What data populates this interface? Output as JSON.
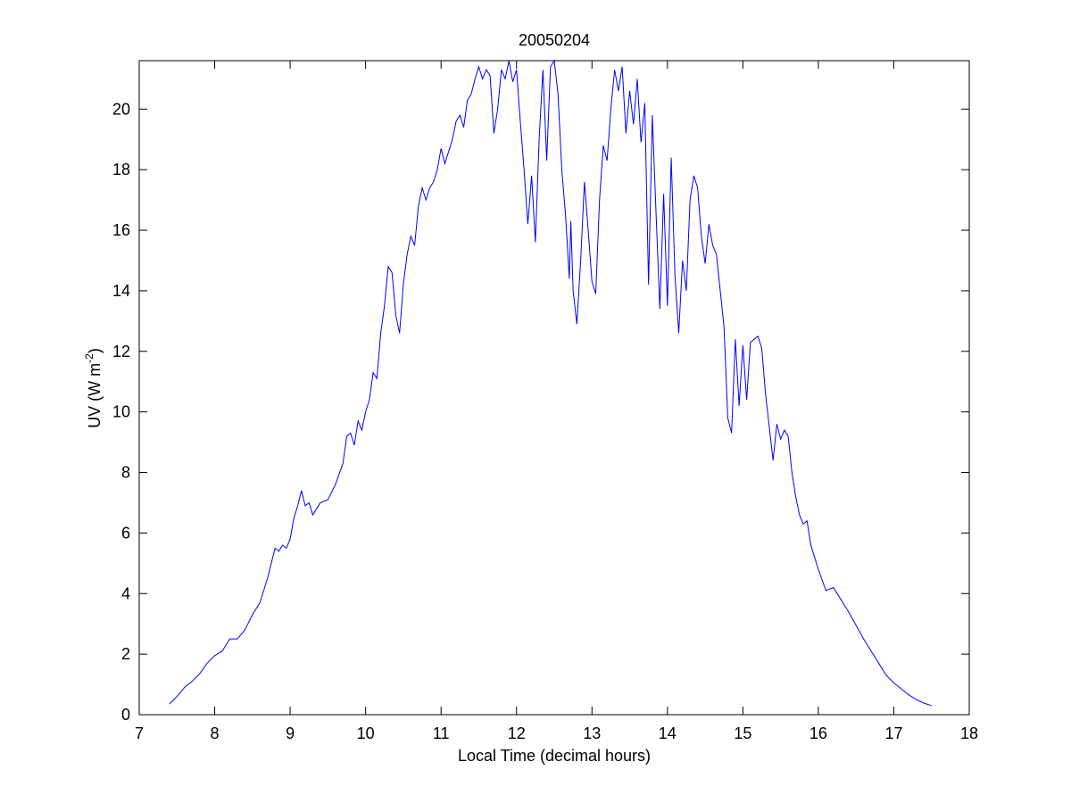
{
  "chart_data": {
    "type": "line",
    "title": "20050204",
    "xlabel": "Local Time (decimal hours)",
    "ylabel": [
      "UV (W m",
      "-2",
      ")"
    ],
    "xlim": [
      7,
      18
    ],
    "xticks": [
      7,
      8,
      9,
      10,
      11,
      12,
      13,
      14,
      15,
      16,
      17,
      18
    ],
    "ylim": [
      0,
      21.6
    ],
    "yticks": [
      0,
      2,
      4,
      6,
      8,
      10,
      12,
      14,
      16,
      18,
      20
    ],
    "grid": false,
    "box": true,
    "series": [
      {
        "color": "#0000ff",
        "x": [
          7.4,
          7.5,
          7.6,
          7.7,
          7.8,
          7.9,
          8.0,
          8.1,
          8.2,
          8.3,
          8.4,
          8.5,
          8.6,
          8.7,
          8.8,
          8.85,
          8.9,
          8.95,
          9.0,
          9.05,
          9.1,
          9.15,
          9.2,
          9.25,
          9.3,
          9.4,
          9.5,
          9.6,
          9.7,
          9.75,
          9.8,
          9.85,
          9.9,
          9.95,
          10.0,
          10.05,
          10.1,
          10.15,
          10.2,
          10.25,
          10.3,
          10.35,
          10.4,
          10.45,
          10.5,
          10.55,
          10.6,
          10.65,
          10.7,
          10.75,
          10.8,
          10.85,
          10.9,
          10.95,
          11.0,
          11.05,
          11.1,
          11.15,
          11.2,
          11.25,
          11.3,
          11.35,
          11.4,
          11.45,
          11.5,
          11.55,
          11.6,
          11.65,
          11.7,
          11.75,
          11.8,
          11.85,
          11.9,
          11.95,
          12.0,
          12.05,
          12.1,
          12.15,
          12.2,
          12.25,
          12.3,
          12.35,
          12.4,
          12.45,
          12.5,
          12.55,
          12.6,
          12.65,
          12.7,
          12.72,
          12.75,
          12.8,
          12.85,
          12.9,
          12.95,
          13.0,
          13.05,
          13.1,
          13.15,
          13.2,
          13.25,
          13.3,
          13.35,
          13.4,
          13.45,
          13.5,
          13.55,
          13.6,
          13.65,
          13.7,
          13.75,
          13.8,
          13.85,
          13.9,
          13.95,
          14.0,
          14.05,
          14.1,
          14.15,
          14.2,
          14.25,
          14.3,
          14.35,
          14.4,
          14.45,
          14.5,
          14.55,
          14.6,
          14.65,
          14.7,
          14.75,
          14.8,
          14.85,
          14.9,
          14.95,
          15.0,
          15.05,
          15.1,
          15.15,
          15.2,
          15.25,
          15.3,
          15.35,
          15.4,
          15.45,
          15.5,
          15.55,
          15.6,
          15.65,
          15.7,
          15.75,
          15.8,
          15.85,
          15.9,
          16.0,
          16.1,
          16.2,
          16.3,
          16.4,
          16.5,
          16.6,
          16.7,
          16.8,
          16.9,
          17.0,
          17.1,
          17.2,
          17.3,
          17.4,
          17.5
        ],
        "values": [
          0.35,
          0.6,
          0.9,
          1.1,
          1.35,
          1.7,
          1.95,
          2.1,
          2.5,
          2.5,
          2.8,
          3.3,
          3.7,
          4.5,
          5.5,
          5.4,
          5.6,
          5.5,
          5.8,
          6.5,
          6.9,
          7.4,
          6.9,
          7.0,
          6.6,
          7.0,
          7.1,
          7.6,
          8.3,
          9.2,
          9.3,
          8.9,
          9.7,
          9.4,
          10.0,
          10.4,
          11.3,
          11.1,
          12.6,
          13.5,
          14.8,
          14.6,
          13.2,
          12.6,
          14.2,
          15.2,
          15.8,
          15.5,
          16.8,
          17.4,
          17.0,
          17.4,
          17.6,
          18.0,
          18.7,
          18.2,
          18.6,
          19.0,
          19.6,
          19.8,
          19.4,
          20.3,
          20.5,
          21.0,
          21.4,
          21.0,
          21.3,
          21.1,
          19.2,
          20.0,
          21.3,
          21.0,
          21.6,
          20.9,
          21.3,
          19.6,
          18.0,
          16.2,
          17.8,
          15.6,
          19.0,
          21.3,
          18.3,
          21.4,
          21.6,
          20.5,
          18.0,
          16.5,
          14.4,
          16.3,
          14.0,
          12.9,
          15.0,
          17.6,
          16.0,
          14.3,
          13.9,
          17.0,
          18.8,
          18.3,
          20.0,
          21.3,
          20.6,
          21.4,
          19.2,
          20.6,
          19.5,
          21.0,
          18.9,
          20.2,
          14.2,
          19.8,
          16.5,
          13.4,
          17.2,
          13.5,
          18.4,
          14.5,
          12.6,
          15.0,
          14.0,
          17.0,
          17.8,
          17.4,
          15.8,
          14.9,
          16.2,
          15.5,
          15.2,
          14.0,
          12.8,
          9.8,
          9.3,
          12.4,
          10.2,
          12.2,
          10.4,
          12.3,
          12.4,
          12.5,
          12.1,
          10.6,
          9.5,
          8.4,
          9.6,
          9.1,
          9.4,
          9.2,
          8.0,
          7.2,
          6.6,
          6.3,
          6.4,
          5.6,
          4.8,
          4.1,
          4.2,
          3.8,
          3.4,
          2.95,
          2.5,
          2.1,
          1.7,
          1.3,
          1.05,
          0.85,
          0.65,
          0.5,
          0.38,
          0.3
        ]
      }
    ]
  }
}
